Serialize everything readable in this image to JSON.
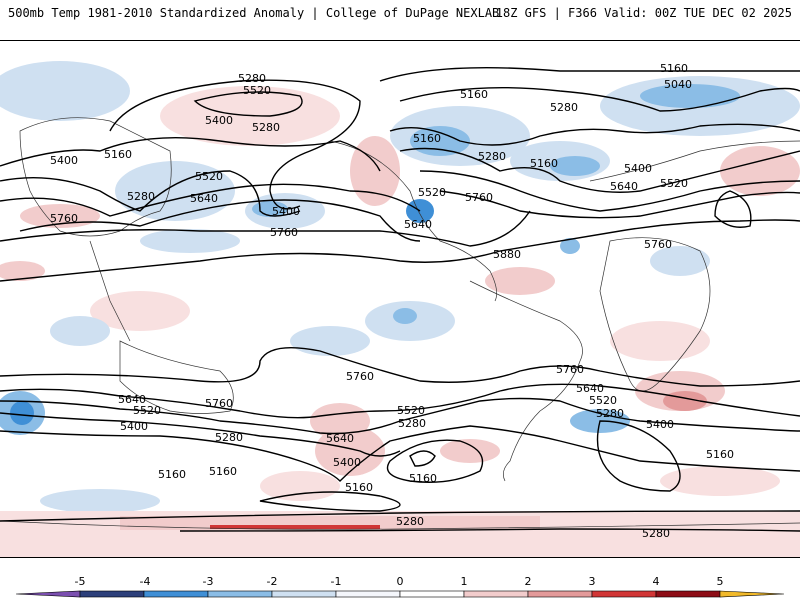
{
  "header": {
    "left_title": "500mb Temp 1981-2010 Standardized Anomaly | College of DuPage NEXLAB",
    "right_title": "18Z GFS | F366 Valid: 00Z TUE DEC 02 2025"
  },
  "colorbar": {
    "ticks": [
      "-5",
      "-4",
      "-3",
      "-2",
      "-1",
      "0",
      "1",
      "2",
      "3",
      "4",
      "5"
    ],
    "colors": [
      "#7b4fb0",
      "#2c3f7a",
      "#3f8fd6",
      "#8bbde6",
      "#cfe0f1",
      "#f4f6fb",
      "#ffffff",
      "#f2cccc",
      "#e39a9a",
      "#d13636",
      "#8d0d16",
      "#f1b92a"
    ]
  },
  "contours": {
    "color": "#000000",
    "labels": [
      "5280",
      "5520",
      "5400",
      "5280",
      "5160",
      "5400",
      "5280",
      "5520",
      "5640",
      "5400",
      "5760",
      "5760",
      "5160",
      "5040",
      "5160",
      "5280",
      "5280",
      "5160",
      "5400",
      "5640",
      "5520",
      "5160",
      "5520",
      "5760",
      "5640",
      "5760",
      "5880",
      "5640",
      "5520",
      "5400",
      "5280",
      "5160",
      "5760",
      "5760",
      "5520",
      "5280",
      "5640",
      "5400",
      "5160",
      "5160",
      "5160",
      "5760",
      "5640",
      "5520",
      "5280",
      "5400",
      "5160",
      "5280",
      "5280"
    ]
  }
}
